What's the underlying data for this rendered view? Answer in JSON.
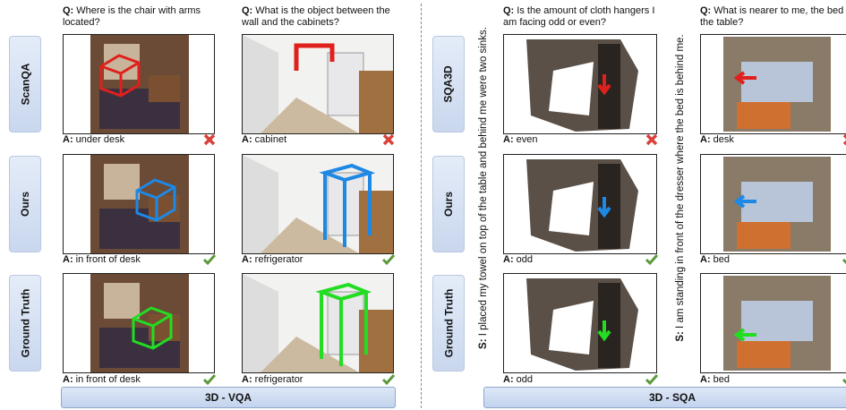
{
  "vqa": {
    "title": "3D - VQA",
    "rows": [
      "ScanQA",
      "Ours",
      "Ground Truth"
    ],
    "question_prefix": "Q:",
    "answer_prefix": "A:",
    "columns": [
      {
        "question": "Where is the chair with arms located?",
        "answers": [
          "under desk",
          "in front of desk",
          "in front of desk"
        ],
        "correct": [
          false,
          true,
          true
        ]
      },
      {
        "question": "What is the object between the wall and the cabinets?",
        "answers": [
          "cabinet",
          "refrigerator",
          "refrigerator"
        ],
        "correct": [
          false,
          true,
          true
        ]
      }
    ]
  },
  "sqa": {
    "title": "3D - SQA",
    "rows": [
      "SQA3D",
      "Ours",
      "Ground Truth"
    ],
    "question_prefix": "Q:",
    "answer_prefix": "A:",
    "situation_prefix": "S:",
    "columns": [
      {
        "situation": "I placed my towel on top of the table and behind me were two sinks.",
        "question": "Is the amount of cloth hangers I am facing odd or even?",
        "answers": [
          "even",
          "odd",
          "odd"
        ],
        "correct": [
          false,
          true,
          true
        ]
      },
      {
        "situation": "I am standing in front of the dresser where the bed is behind me.",
        "question": "What is nearer to me, the bed or the table?",
        "answers": [
          "desk",
          "bed",
          "bed"
        ],
        "correct": [
          false,
          true,
          true
        ]
      }
    ]
  }
}
